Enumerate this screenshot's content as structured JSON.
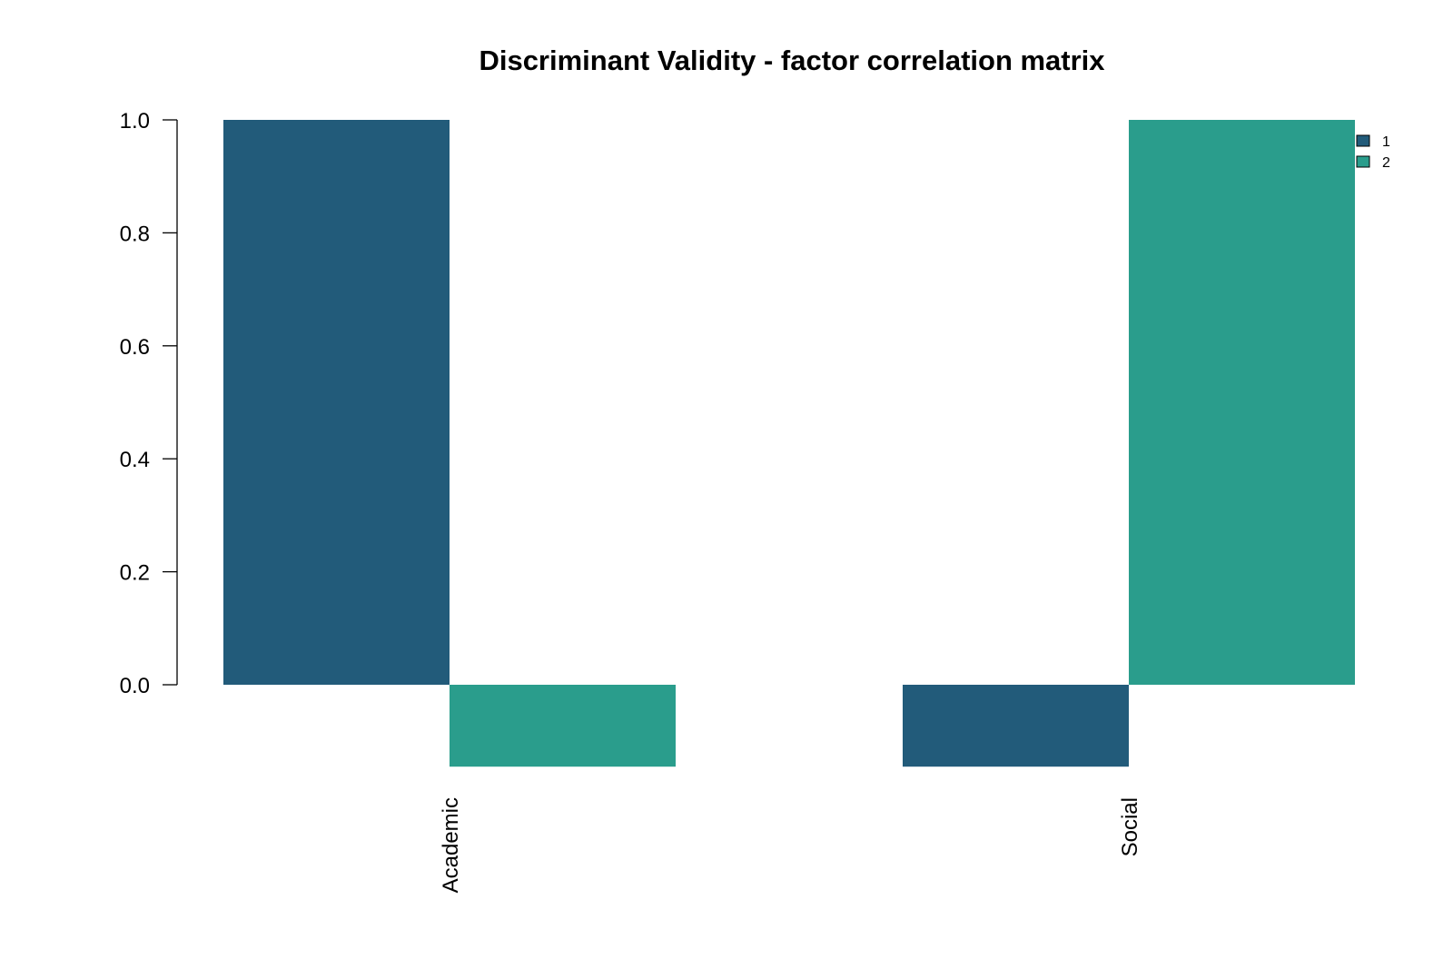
{
  "chart_data": {
    "type": "bar",
    "title": "Discriminant Validity - factor correlation matrix",
    "categories": [
      "Academic",
      "Social"
    ],
    "series": [
      {
        "name": "1",
        "color": "#225b7a",
        "values": [
          1.0,
          -0.145
        ]
      },
      {
        "name": "2",
        "color": "#2a9d8c",
        "values": [
          -0.145,
          1.0
        ]
      }
    ],
    "yticks": [
      "0.0",
      "0.2",
      "0.4",
      "0.6",
      "0.8",
      "1.0"
    ],
    "ylim": [
      -0.145,
      1.0
    ],
    "xlabel": "",
    "ylabel": "",
    "grid": false,
    "legend": "top-right"
  }
}
